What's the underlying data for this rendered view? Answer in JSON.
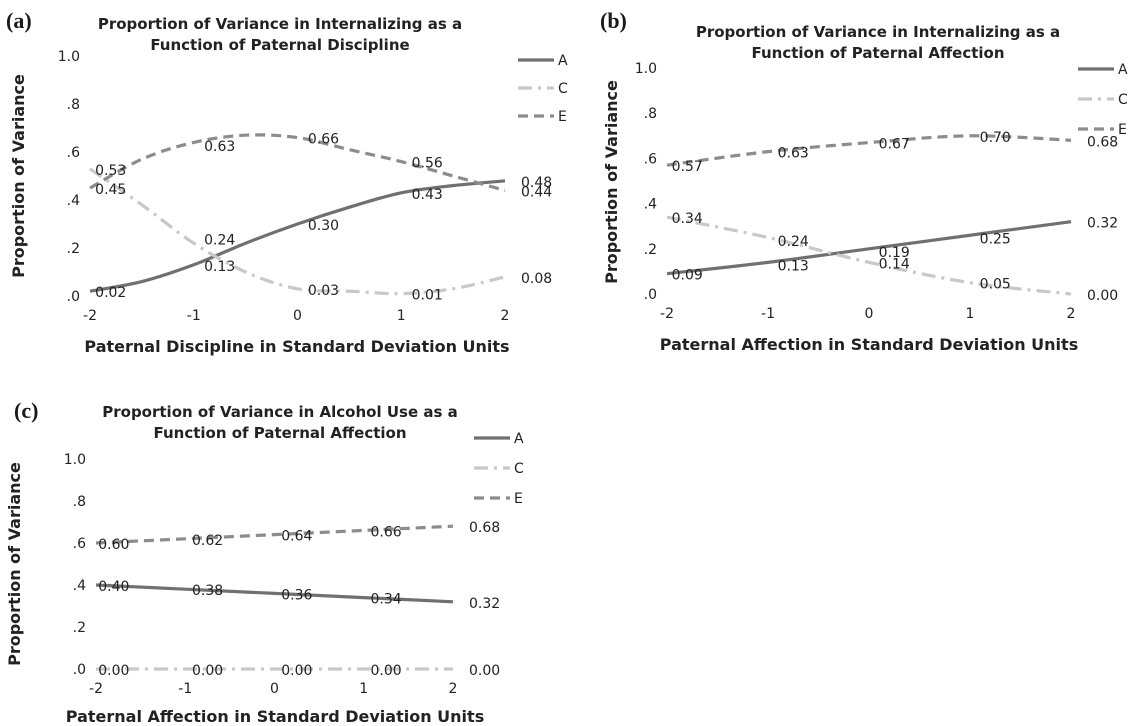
{
  "chart_data": [
    {
      "panel_label": "(a)",
      "type": "line",
      "title_lines": [
        "Proportion of Variance in Internalizing as a",
        "Function of Paternal Discipline"
      ],
      "xlabel": "Paternal Discipline in Standard Deviation Units",
      "ylabel": "Proportion of Variance",
      "xlim": [
        -2,
        2
      ],
      "ylim": [
        0,
        1
      ],
      "x_ticks": [
        "-2",
        "-1",
        "0",
        "1",
        "2"
      ],
      "y_ticks": [
        ".0",
        ".2",
        ".4",
        ".6",
        ".8",
        "1.0"
      ],
      "legend_position": "top-right",
      "series": [
        {
          "name": "A",
          "style": "solid",
          "color": "#707070",
          "x": [
            -2,
            -1.5,
            -1,
            -0.5,
            0,
            0.5,
            1,
            1.5,
            2
          ],
          "values": [
            0.02,
            0.06,
            0.13,
            0.22,
            0.3,
            0.37,
            0.43,
            0.46,
            0.48
          ],
          "labels": [
            {
              "x": -1.8,
              "value": 0.02,
              "text": "0.02"
            },
            {
              "x": -0.75,
              "value": 0.24,
              "text": "0.24"
            },
            {
              "x": 0.25,
              "value": 0.3,
              "text": "0.30"
            },
            {
              "x": 1.25,
              "value": 0.43,
              "text": "0.43"
            },
            {
              "x": 2.0,
              "value": 0.48,
              "text": "0.48"
            }
          ]
        },
        {
          "name": "C",
          "style": "dashdot",
          "color": "#c8c8c8",
          "x": [
            -2,
            -1.5,
            -1,
            -0.5,
            0,
            0.5,
            1,
            1.5,
            2
          ],
          "values": [
            0.53,
            0.38,
            0.22,
            0.1,
            0.03,
            0.02,
            0.01,
            0.03,
            0.08
          ],
          "labels": [
            {
              "x": -1.8,
              "value": 0.53,
              "text": "0.53"
            },
            {
              "x": -0.75,
              "value": 0.13,
              "text": "0.13"
            },
            {
              "x": 0.25,
              "value": 0.03,
              "text": "0.03"
            },
            {
              "x": 1.25,
              "value": 0.01,
              "text": "0.01"
            },
            {
              "x": 2.0,
              "value": 0.08,
              "text": "0.08"
            }
          ]
        },
        {
          "name": "E",
          "style": "dash",
          "color": "#8c8c8c",
          "x": [
            -2,
            -1.5,
            -1,
            -0.5,
            0,
            0.5,
            1,
            1.5,
            2
          ],
          "values": [
            0.45,
            0.57,
            0.64,
            0.67,
            0.66,
            0.61,
            0.56,
            0.5,
            0.44
          ],
          "labels": [
            {
              "x": -1.8,
              "value": 0.45,
              "text": "0.45"
            },
            {
              "x": -0.75,
              "value": 0.63,
              "text": "0.63"
            },
            {
              "x": 0.25,
              "value": 0.66,
              "text": "0.66"
            },
            {
              "x": 1.25,
              "value": 0.56,
              "text": "0.56"
            },
            {
              "x": 2.0,
              "value": 0.44,
              "text": "0.44"
            }
          ]
        }
      ]
    },
    {
      "panel_label": "(b)",
      "type": "line",
      "title_lines": [
        "Proportion of Variance in Internalizing as a",
        "Function of Paternal Affection"
      ],
      "xlabel": "Paternal Affection in Standard Deviation Units",
      "ylabel": "Proportion of Variance",
      "xlim": [
        -2,
        2
      ],
      "ylim": [
        0,
        1
      ],
      "x_ticks": [
        "-2",
        "-1",
        "0",
        "1",
        "2"
      ],
      "y_ticks": [
        ".0",
        ".2",
        ".4",
        ".6",
        ".8",
        "1.0"
      ],
      "legend_position": "top-right",
      "series": [
        {
          "name": "A",
          "style": "solid",
          "color": "#707070",
          "x": [
            -2,
            -1,
            0,
            1,
            2
          ],
          "values": [
            0.09,
            0.14,
            0.2,
            0.26,
            0.32
          ],
          "labels": [
            {
              "x": -1.8,
              "value": 0.09,
              "text": "0.09"
            },
            {
              "x": -0.75,
              "value": 0.13,
              "text": "0.13"
            },
            {
              "x": 0.25,
              "value": 0.19,
              "text": "0.19"
            },
            {
              "x": 1.25,
              "value": 0.25,
              "text": "0.25"
            },
            {
              "x": 2.0,
              "value": 0.32,
              "text": "0.32"
            }
          ]
        },
        {
          "name": "C",
          "style": "dashdot",
          "color": "#c8c8c8",
          "x": [
            -2,
            -1,
            0,
            1,
            2
          ],
          "values": [
            0.34,
            0.25,
            0.14,
            0.05,
            0.0
          ],
          "labels": [
            {
              "x": -1.8,
              "value": 0.34,
              "text": "0.34"
            },
            {
              "x": -0.75,
              "value": 0.24,
              "text": "0.24"
            },
            {
              "x": 0.25,
              "value": 0.14,
              "text": "0.14"
            },
            {
              "x": 1.25,
              "value": 0.05,
              "text": "0.05"
            },
            {
              "x": 2.0,
              "value": 0.0,
              "text": "0.00"
            }
          ]
        },
        {
          "name": "E",
          "style": "dash",
          "color": "#8c8c8c",
          "x": [
            -2,
            -1,
            0,
            1,
            2
          ],
          "values": [
            0.57,
            0.63,
            0.67,
            0.7,
            0.68
          ],
          "labels": [
            {
              "x": -1.8,
              "value": 0.57,
              "text": "0.57"
            },
            {
              "x": -0.75,
              "value": 0.63,
              "text": "0.63"
            },
            {
              "x": 0.25,
              "value": 0.67,
              "text": "0.67"
            },
            {
              "x": 1.25,
              "value": 0.7,
              "text": "0.70"
            },
            {
              "x": 2.0,
              "value": 0.68,
              "text": "0.68"
            }
          ]
        }
      ]
    },
    {
      "panel_label": "(c)",
      "type": "line",
      "title_lines": [
        "Proportion of Variance in Alcohol Use as a",
        "Function of Paternal Affection"
      ],
      "xlabel": "Paternal Affection in Standard Deviation Units",
      "ylabel": "Proportion of Variance",
      "xlim": [
        -2,
        2
      ],
      "ylim": [
        0,
        1
      ],
      "x_ticks": [
        "-2",
        "-1",
        "0",
        "1",
        "2"
      ],
      "y_ticks": [
        ".0",
        ".2",
        ".4",
        ".6",
        ".8",
        "1.0"
      ],
      "legend_position": "top-right",
      "series": [
        {
          "name": "A",
          "style": "solid",
          "color": "#707070",
          "x": [
            -2,
            -1,
            0,
            1,
            2
          ],
          "values": [
            0.4,
            0.38,
            0.36,
            0.34,
            0.32
          ],
          "labels": [
            {
              "x": -1.8,
              "value": 0.4,
              "text": "0.40"
            },
            {
              "x": -0.75,
              "value": 0.38,
              "text": "0.38"
            },
            {
              "x": 0.25,
              "value": 0.36,
              "text": "0.36"
            },
            {
              "x": 1.25,
              "value": 0.34,
              "text": "0.34"
            },
            {
              "x": 2.0,
              "value": 0.32,
              "text": "0.32"
            }
          ]
        },
        {
          "name": "C",
          "style": "dashdot",
          "color": "#c8c8c8",
          "x": [
            -2,
            -1,
            0,
            1,
            2
          ],
          "values": [
            0.0,
            0.0,
            0.0,
            0.0,
            0.0
          ],
          "labels": [
            {
              "x": -1.8,
              "value": 0.0,
              "text": "0.00"
            },
            {
              "x": -0.75,
              "value": 0.0,
              "text": "0.00"
            },
            {
              "x": 0.25,
              "value": 0.0,
              "text": "0.00"
            },
            {
              "x": 1.25,
              "value": 0.0,
              "text": "0.00"
            },
            {
              "x": 2.0,
              "value": 0.0,
              "text": "0.00"
            }
          ]
        },
        {
          "name": "E",
          "style": "dash",
          "color": "#8c8c8c",
          "x": [
            -2,
            -1,
            0,
            1,
            2
          ],
          "values": [
            0.6,
            0.62,
            0.64,
            0.66,
            0.68
          ],
          "labels": [
            {
              "x": -1.8,
              "value": 0.6,
              "text": "0.60"
            },
            {
              "x": -0.75,
              "value": 0.62,
              "text": "0.62"
            },
            {
              "x": 0.25,
              "value": 0.64,
              "text": "0.64"
            },
            {
              "x": 1.25,
              "value": 0.66,
              "text": "0.66"
            },
            {
              "x": 2.0,
              "value": 0.68,
              "text": "0.68"
            }
          ]
        }
      ]
    }
  ]
}
